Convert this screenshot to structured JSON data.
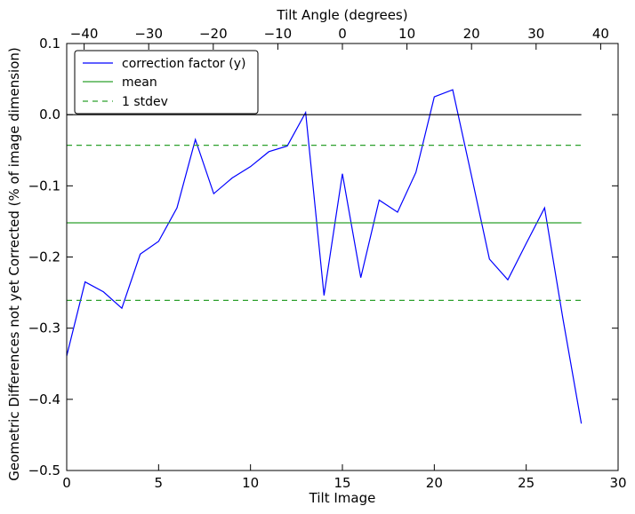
{
  "chart_data": {
    "type": "line",
    "xlabel": "Tilt Image",
    "ylabel": "Geometric Differences not yet Corrected (% of image dimension)",
    "x2label": "Tilt Angle (degrees)",
    "xlim": [
      0,
      30
    ],
    "ylim": [
      -0.5,
      0.1
    ],
    "x2lim": [
      -42.7,
      42.7
    ],
    "x_ticks": [
      0,
      5,
      10,
      15,
      20,
      25,
      30
    ],
    "x_tick_labels": [
      "0",
      "5",
      "10",
      "15",
      "20",
      "25",
      "30"
    ],
    "y_ticks": [
      -0.5,
      -0.4,
      -0.3,
      -0.2,
      -0.1,
      0.0,
      0.1
    ],
    "y_tick_labels": [
      "−0.5",
      "−0.4",
      "−0.3",
      "−0.2",
      "−0.1",
      "0.0",
      "0.1"
    ],
    "x2_ticks": [
      -40,
      -30,
      -20,
      -10,
      0,
      10,
      20,
      30,
      40
    ],
    "x2_tick_labels": [
      "−40",
      "−30",
      "−20",
      "−10",
      "0",
      "10",
      "20",
      "30",
      "40"
    ],
    "grid": false,
    "legend_position": "top-left",
    "series": [
      {
        "name": "correction factor (y)",
        "color": "#0000ff",
        "style": "solid",
        "x": [
          0,
          1,
          2,
          3,
          4,
          5,
          6,
          7,
          8,
          9,
          10,
          11,
          12,
          13,
          14,
          15,
          16,
          17,
          18,
          19,
          20,
          21,
          22,
          23,
          24,
          25,
          26,
          27,
          28
        ],
        "y": [
          -0.339,
          -0.235,
          -0.249,
          -0.272,
          -0.196,
          -0.178,
          -0.131,
          -0.035,
          -0.111,
          -0.089,
          -0.073,
          -0.052,
          -0.044,
          0.003,
          -0.254,
          -0.083,
          -0.229,
          -0.12,
          -0.137,
          -0.081,
          0.025,
          0.035,
          -0.083,
          -0.203,
          -0.232,
          -0.181,
          -0.131,
          -0.287,
          -0.434
        ]
      },
      {
        "name": "mean",
        "color": "#2ca02c",
        "style": "solid",
        "x": [
          0,
          28
        ],
        "y": [
          -0.152,
          -0.152
        ]
      },
      {
        "name": "1 stdev",
        "color": "#2ca02c",
        "style": "dashed",
        "x": [
          0,
          28
        ],
        "y": [
          -0.043,
          -0.043
        ]
      },
      {
        "name": "",
        "color": "#2ca02c",
        "style": "dashed",
        "x": [
          0,
          28
        ],
        "y": [
          -0.261,
          -0.261
        ]
      },
      {
        "name": "",
        "color": "#000000",
        "style": "solid",
        "x": [
          0,
          28
        ],
        "y": [
          0.0,
          0.0
        ]
      }
    ],
    "legend": [
      "correction factor (y)",
      "mean",
      "1 stdev"
    ]
  }
}
